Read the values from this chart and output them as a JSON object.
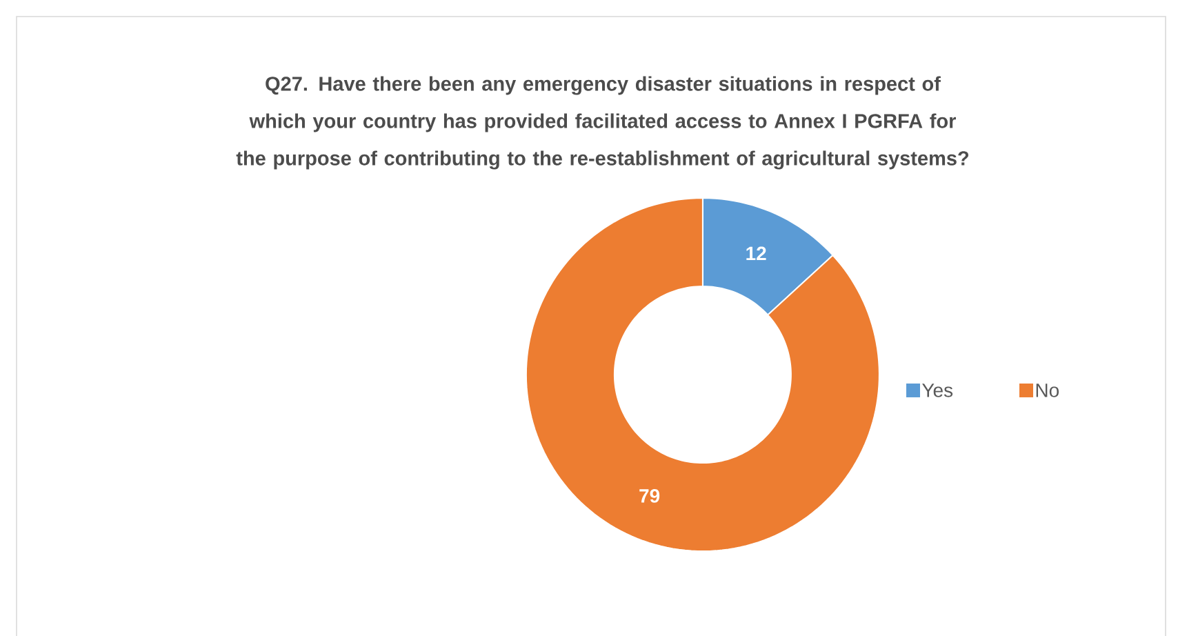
{
  "chart_data": {
    "type": "donut",
    "title": "Q27. Have there been any emergency disaster situations in respect of which your country has provided facilitated access to Annex I PGRFA for the purpose of contributing to the re-establishment of agricultural systems?",
    "categories": [
      "Yes",
      "No"
    ],
    "values": [
      12,
      79
    ],
    "colors": [
      "#5b9bd5",
      "#ed7d31"
    ],
    "data_labels": true,
    "legend": "right"
  }
}
